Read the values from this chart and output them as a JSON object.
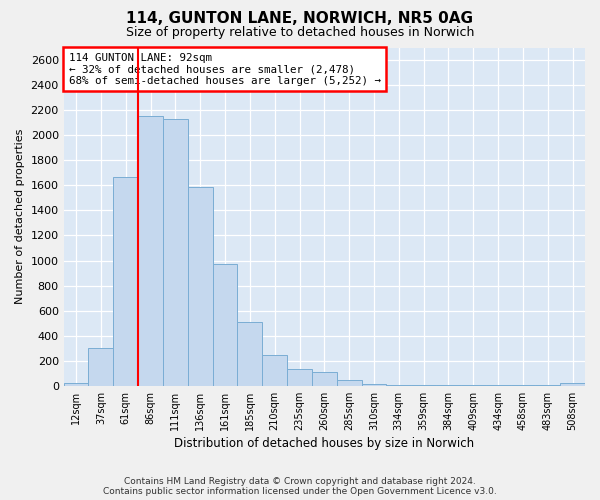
{
  "title": "114, GUNTON LANE, NORWICH, NR5 0AG",
  "subtitle": "Size of property relative to detached houses in Norwich",
  "xlabel": "Distribution of detached houses by size in Norwich",
  "ylabel": "Number of detached properties",
  "bar_color": "#c5d8ee",
  "bar_edge_color": "#7aadd4",
  "axes_bg_color": "#dce8f5",
  "fig_bg_color": "#f0f0f0",
  "grid_color": "#ffffff",
  "categories": [
    "12sqm",
    "37sqm",
    "61sqm",
    "86sqm",
    "111sqm",
    "136sqm",
    "161sqm",
    "185sqm",
    "210sqm",
    "235sqm",
    "260sqm",
    "285sqm",
    "310sqm",
    "334sqm",
    "359sqm",
    "384sqm",
    "409sqm",
    "434sqm",
    "458sqm",
    "483sqm",
    "508sqm"
  ],
  "values": [
    20,
    300,
    1670,
    2150,
    2130,
    1590,
    970,
    510,
    245,
    135,
    110,
    50,
    18,
    8,
    5,
    5,
    5,
    5,
    5,
    5,
    20
  ],
  "ylim": [
    0,
    2700
  ],
  "yticks": [
    0,
    200,
    400,
    600,
    800,
    1000,
    1200,
    1400,
    1600,
    1800,
    2000,
    2200,
    2400,
    2600
  ],
  "red_line_bin": 3,
  "annotation_line1": "114 GUNTON LANE: 92sqm",
  "annotation_line2": "← 32% of detached houses are smaller (2,478)",
  "annotation_line3": "68% of semi-detached houses are larger (5,252) →",
  "footer_line1": "Contains HM Land Registry data © Crown copyright and database right 2024.",
  "footer_line2": "Contains public sector information licensed under the Open Government Licence v3.0."
}
